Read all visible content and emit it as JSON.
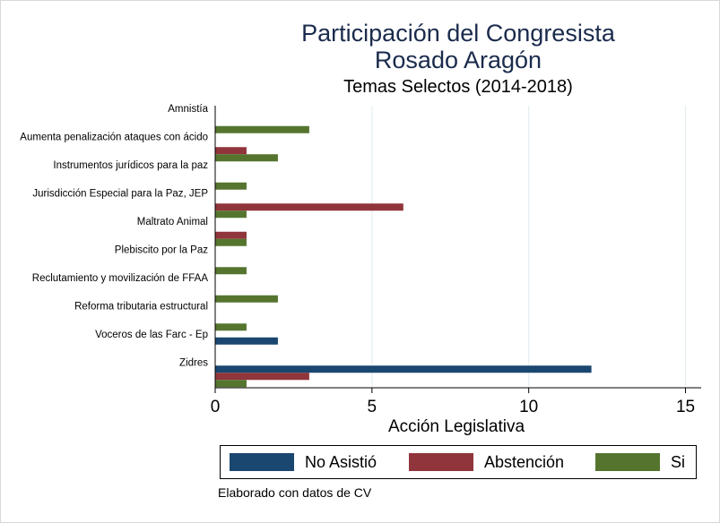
{
  "chart_data": {
    "type": "bar",
    "orientation": "horizontal",
    "title": "Participación del Congresista",
    "title_line2": "Rosado Aragón",
    "subtitle": "Temas Selectos (2014-2018)",
    "xlabel": "Acción Legislativa",
    "xlim": [
      0,
      15.5
    ],
    "xticks": [
      "0",
      "5",
      "10",
      "15"
    ],
    "xtick_values": [
      0,
      5,
      10,
      15
    ],
    "grid": true,
    "legend_position": "bottom",
    "categories": [
      "Amnistía",
      "Aumenta penalización ataques con ácido",
      "Instrumentos jurídicos para la paz",
      "Jurisdicción Especial para la Paz, JEP",
      "Maltrato Animal",
      "Plebiscito por la Paz",
      "Reclutamiento y movilización de FFAA",
      "Reforma tributaria estructural",
      "Voceros de las Farc - Ep",
      "Zidres"
    ],
    "series": [
      {
        "name": "No Asistió",
        "color": "#1a476f",
        "values": [
          0,
          0,
          0,
          0,
          0,
          0,
          0,
          0,
          2,
          12
        ]
      },
      {
        "name": "Abstención",
        "color": "#90353b",
        "values": [
          0,
          1,
          0,
          6,
          1,
          0,
          0,
          0,
          0,
          3
        ]
      },
      {
        "name": "Si",
        "color": "#55752f",
        "values": [
          3,
          2,
          1,
          1,
          1,
          1,
          2,
          1,
          0,
          1
        ]
      }
    ]
  },
  "note": "Elaborado con datos de CV"
}
